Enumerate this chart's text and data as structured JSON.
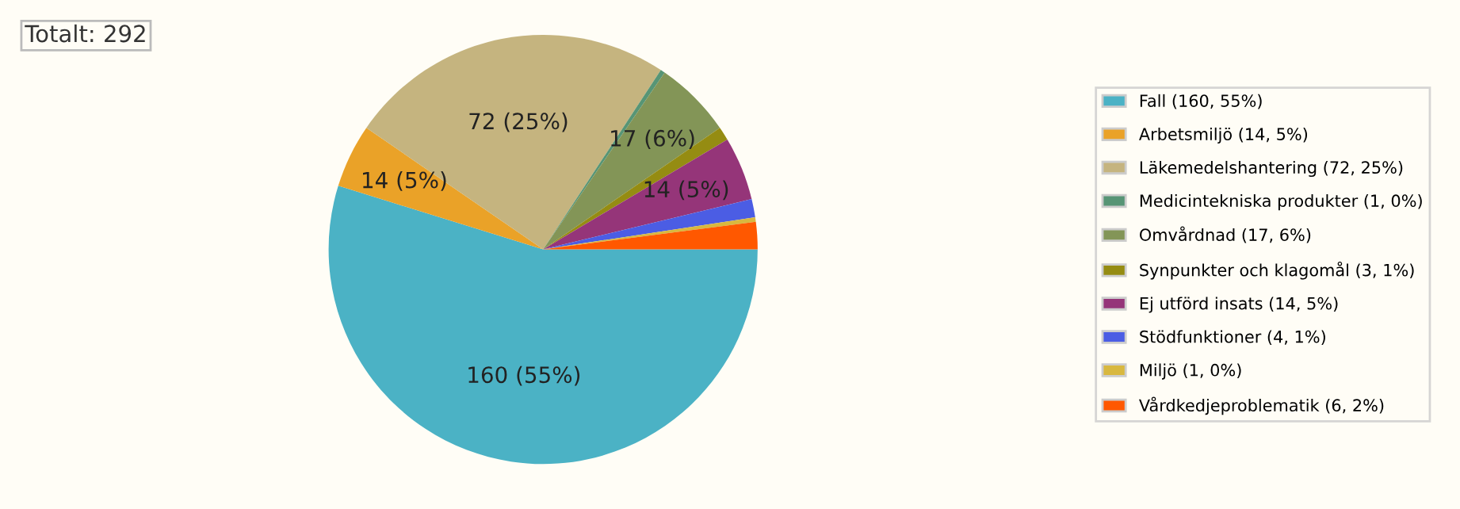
{
  "chart_data": {
    "type": "pie",
    "title": "Totalt: 292",
    "categories": [
      "Fall (160, 55%)",
      "Arbetsmiljö (14, 5%)",
      "Läkemedelshantering (72, 25%)",
      "Medicintekniska produkter (1, 0%)",
      "Omvårdnad (17, 6%)",
      "Synpunkter och klagomål (3, 1%)",
      "Ej utförd insats (14, 5%)",
      "Stödfunktioner (4, 1%)",
      "Miljö (1, 0%)",
      "Vårdkedjeproblematik (6, 2%)"
    ],
    "values": [
      160,
      14,
      72,
      1,
      17,
      3,
      14,
      4,
      1,
      6
    ],
    "colors": [
      "#4bb2c5",
      "#eaa228",
      "#c5b47f",
      "#579575",
      "#839557",
      "#958c12",
      "#953579",
      "#4b5de4",
      "#d8b83f",
      "#ff5800"
    ],
    "value_labels": [
      "160 (55%)",
      "14 (5%)",
      "72 (25%)",
      null,
      "17 (6%)",
      null,
      "14 (5%)",
      null,
      null,
      null
    ],
    "legend": "right"
  }
}
